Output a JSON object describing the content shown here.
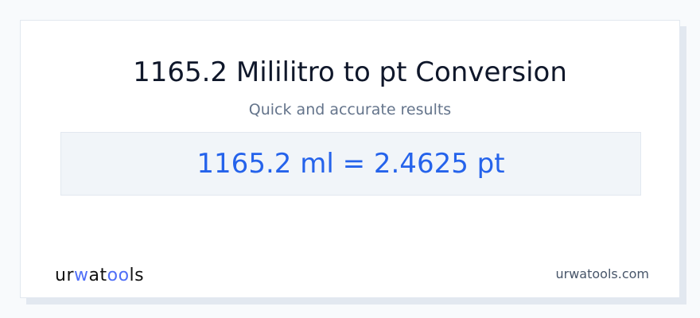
{
  "title": "1165.2 Mililitro to pt Conversion",
  "subtitle": "Quick and accurate results",
  "result": "1165.2 ml = 2.4625 pt",
  "logo": {
    "text": "urwatools",
    "parts": [
      "ur",
      "w",
      "at",
      "oo",
      "ls"
    ],
    "accent": "#4f6ef7"
  },
  "site": "urwatools.com",
  "colors": {
    "result": "#2563eb",
    "title": "#0f172a"
  }
}
